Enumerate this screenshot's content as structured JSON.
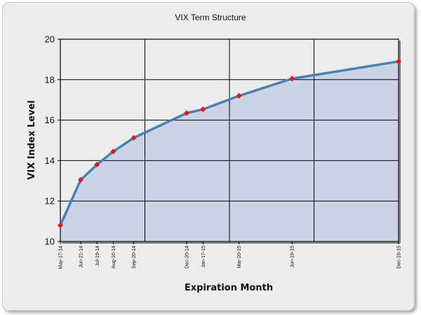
{
  "colors": {
    "line": "#4682b4",
    "area": "#cbd3e6",
    "marker": "#ee1111",
    "grid": "#000000",
    "background": "#ececec"
  },
  "chart_data": {
    "type": "area",
    "title": "VIX Term Structure",
    "xlabel": "Expiration Month",
    "ylabel": "VIX Index Level",
    "ylim": [
      10,
      20
    ],
    "yticks": [
      10,
      12,
      14,
      16,
      18,
      20
    ],
    "xlim": [
      "2014-05-17",
      "2015-12-19"
    ],
    "grid": true,
    "legend": "none",
    "x": [
      "2014-05-17",
      "2014-06-21",
      "2014-07-19",
      "2014-08-16",
      "2014-09-20",
      "2014-12-20",
      "2015-01-17",
      "2015-03-20",
      "2015-06-19",
      "2015-12-19"
    ],
    "tick_labels": [
      "May-17-14",
      "Jun-21-14",
      "Jul-19-14",
      "Aug-16-14",
      "Sep-20-14",
      "Dec-20-14",
      "Jan-17-15",
      "Mar-20-15",
      "Jun-19-15",
      "Dec-19-15"
    ],
    "series": [
      {
        "values": [
          10.8,
          13.05,
          13.8,
          14.45,
          15.12,
          16.35,
          16.53,
          17.2,
          18.05,
          18.9
        ]
      }
    ]
  }
}
